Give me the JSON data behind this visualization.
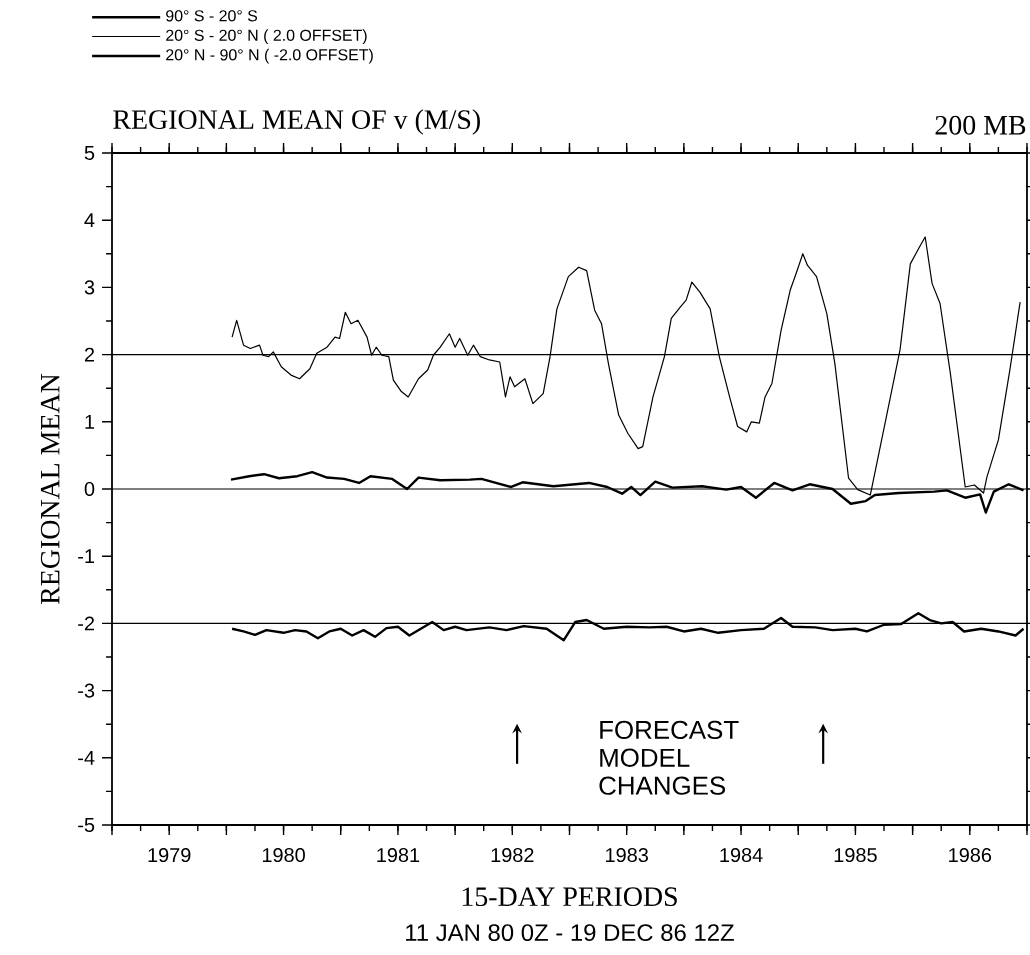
{
  "chart_data": {
    "type": "line",
    "title": "REGIONAL MEAN OF v (M/S)",
    "subtitle": "200 MB",
    "xlabel": "15-DAY PERIODS",
    "ylabel": "REGIONAL MEAN",
    "annotations": [
      "11 JAN 80 0Z - 19 DEC 86 12Z",
      "FORECAST MODEL CHANGES"
    ],
    "xlim": [
      1979,
      1987
    ],
    "ylim": [
      -5,
      5
    ],
    "yticks": [
      -5,
      -4,
      -3,
      -2,
      -1,
      0,
      1,
      2,
      3,
      4,
      5
    ],
    "xticks": [
      {
        "value": 1979,
        "label": null
      },
      {
        "value": 1980,
        "label": null
      },
      {
        "value": 1981,
        "label": null
      },
      {
        "value": 1982,
        "label": null
      },
      {
        "value": 1983,
        "label": null
      },
      {
        "value": 1984,
        "label": null
      },
      {
        "value": 1985,
        "label": null
      },
      {
        "value": 1986,
        "label": null
      },
      {
        "value": 1987,
        "label": null
      },
      {
        "value": 1979.5,
        "label": "1979"
      },
      {
        "value": 1980.5,
        "label": "1980"
      },
      {
        "value": 1981.5,
        "label": "1981"
      },
      {
        "value": 1982.5,
        "label": "1982"
      },
      {
        "value": 1983.5,
        "label": "1983"
      },
      {
        "value": 1984.5,
        "label": "1984"
      },
      {
        "value": 1985.5,
        "label": "1985"
      },
      {
        "value": 1986.5,
        "label": "1986"
      }
    ],
    "ref_lines": [
      {
        "axis": "y",
        "value": 2
      },
      {
        "axis": "y",
        "value": 0
      },
      {
        "axis": "y",
        "value": -2
      }
    ],
    "legend": "top left",
    "series": [
      {
        "name": "90° S - 20° S",
        "color": "#000000",
        "x": [
          1980.04,
          1980.2,
          1980.33,
          1980.46,
          1980.62,
          1980.75,
          1980.88,
          1981.03,
          1981.16,
          1981.26,
          1981.45,
          1981.58,
          1981.68,
          1981.87,
          1982.13,
          1982.23,
          1982.49,
          1982.59,
          1982.86,
          1983.17,
          1983.33,
          1983.46,
          1983.54,
          1983.62,
          1983.75,
          1983.9,
          1984.16,
          1984.37,
          1984.5,
          1984.63,
          1984.79,
          1984.95,
          1985.1,
          1985.3,
          1985.46,
          1985.59,
          1985.67,
          1985.88,
          1986.19,
          1986.3,
          1986.46,
          1986.59,
          1986.64,
          1986.71,
          1986.84,
          1986.97
        ],
        "values": [
          0.14,
          0.19,
          0.22,
          0.16,
          0.19,
          0.25,
          0.17,
          0.15,
          0.09,
          0.19,
          0.15,
          0.0,
          0.17,
          0.13,
          0.14,
          0.15,
          0.03,
          0.1,
          0.04,
          0.09,
          0.03,
          -0.07,
          0.03,
          -0.09,
          0.11,
          0.02,
          0.04,
          -0.01,
          0.03,
          -0.13,
          0.09,
          -0.02,
          0.07,
          0.0,
          -0.22,
          -0.18,
          -0.09,
          -0.06,
          -0.04,
          -0.02,
          -0.13,
          -0.08,
          -0.35,
          -0.04,
          0.07,
          -0.02
        ]
      },
      {
        "name": "20° S - 20° N ( 2.0 OFFSET)",
        "color": "#000000",
        "x": [
          1980.05,
          1980.09,
          1980.15,
          1980.21,
          1980.29,
          1980.32,
          1980.37,
          1980.41,
          1980.48,
          1980.57,
          1980.64,
          1980.73,
          1980.79,
          1980.88,
          1980.95,
          1980.99,
          1981.04,
          1981.09,
          1981.15,
          1981.23,
          1981.27,
          1981.31,
          1981.36,
          1981.42,
          1981.46,
          1981.53,
          1981.59,
          1981.68,
          1981.76,
          1981.81,
          1981.87,
          1981.95,
          1982.0,
          1982.04,
          1982.11,
          1982.16,
          1982.22,
          1982.3,
          1982.39,
          1982.44,
          1982.48,
          1982.52,
          1982.61,
          1982.68,
          1982.77,
          1982.83,
          1982.89,
          1982.99,
          1983.08,
          1983.15,
          1983.22,
          1983.28,
          1983.34,
          1983.43,
          1983.51,
          1983.6,
          1983.64,
          1983.73,
          1983.83,
          1983.89,
          1983.97,
          1984.02,
          1984.07,
          1984.14,
          1984.23,
          1984.31,
          1984.4,
          1984.47,
          1984.55,
          1984.59,
          1984.66,
          1984.71,
          1984.77,
          1984.85,
          1984.93,
          1984.98,
          1985.04,
          1985.08,
          1985.16,
          1985.25,
          1985.32,
          1985.44,
          1985.52,
          1985.63,
          1985.77,
          1985.89,
          1985.98,
          1986.06,
          1986.11,
          1986.17,
          1986.24,
          1986.33,
          1986.46,
          1986.54,
          1986.62,
          1986.65,
          1986.75,
          1986.85,
          1986.94
        ],
        "values": [
          2.26,
          2.51,
          2.14,
          2.09,
          2.14,
          1.99,
          1.97,
          2.04,
          1.82,
          1.69,
          1.64,
          1.79,
          2.02,
          2.11,
          2.26,
          2.24,
          2.63,
          2.46,
          2.51,
          2.26,
          1.99,
          2.11,
          1.99,
          1.97,
          1.62,
          1.45,
          1.37,
          1.64,
          1.77,
          1.99,
          2.11,
          2.31,
          2.11,
          2.24,
          1.99,
          2.14,
          1.97,
          1.92,
          1.89,
          1.37,
          1.67,
          1.52,
          1.64,
          1.27,
          1.42,
          1.97,
          2.68,
          3.16,
          3.3,
          3.25,
          2.66,
          2.46,
          1.87,
          1.1,
          0.83,
          0.6,
          0.63,
          1.37,
          1.97,
          2.54,
          2.71,
          2.81,
          3.08,
          2.93,
          2.68,
          1.97,
          1.37,
          0.93,
          0.85,
          1.0,
          0.98,
          1.37,
          1.57,
          2.36,
          2.96,
          3.2,
          3.5,
          3.33,
          3.16,
          2.61,
          1.87,
          0.16,
          -0.01,
          -0.09,
          1.07,
          2.07,
          3.35,
          3.6,
          3.75,
          3.06,
          2.76,
          1.72,
          0.03,
          0.06,
          -0.06,
          0.18,
          0.73,
          1.77,
          2.78
        ]
      },
      {
        "name": "20° N - 90° N ( -2.0 OFFSET)",
        "color": "#000000",
        "x": [
          1980.05,
          1980.15,
          1980.25,
          1980.35,
          1980.5,
          1980.6,
          1980.7,
          1980.8,
          1980.9,
          1981.0,
          1981.1,
          1981.2,
          1981.3,
          1981.4,
          1981.5,
          1981.6,
          1981.7,
          1981.8,
          1981.9,
          1982.0,
          1982.1,
          1982.3,
          1982.45,
          1982.6,
          1982.8,
          1982.95,
          1983.05,
          1983.15,
          1983.3,
          1983.5,
          1983.7,
          1983.85,
          1984.0,
          1984.15,
          1984.3,
          1984.5,
          1984.7,
          1984.85,
          1984.95,
          1985.15,
          1985.3,
          1985.5,
          1985.6,
          1985.75,
          1985.9,
          1986.05,
          1986.15,
          1986.25,
          1986.35,
          1986.45,
          1986.6,
          1986.75,
          1986.9,
          1986.97
        ],
        "values": [
          -2.08,
          -2.12,
          -2.17,
          -2.1,
          -2.14,
          -2.1,
          -2.12,
          -2.22,
          -2.12,
          -2.08,
          -2.18,
          -2.1,
          -2.2,
          -2.07,
          -2.05,
          -2.18,
          -2.08,
          -1.98,
          -2.1,
          -2.05,
          -2.1,
          -2.06,
          -2.1,
          -2.04,
          -2.08,
          -2.25,
          -1.98,
          -1.95,
          -2.08,
          -2.05,
          -2.06,
          -2.05,
          -2.12,
          -2.08,
          -2.14,
          -2.1,
          -2.08,
          -1.92,
          -2.05,
          -2.06,
          -2.1,
          -2.08,
          -2.12,
          -2.02,
          -2.01,
          -1.85,
          -1.95,
          -2.0,
          -1.98,
          -2.12,
          -2.08,
          -2.12,
          -2.18,
          -2.08
        ]
      }
    ]
  }
}
